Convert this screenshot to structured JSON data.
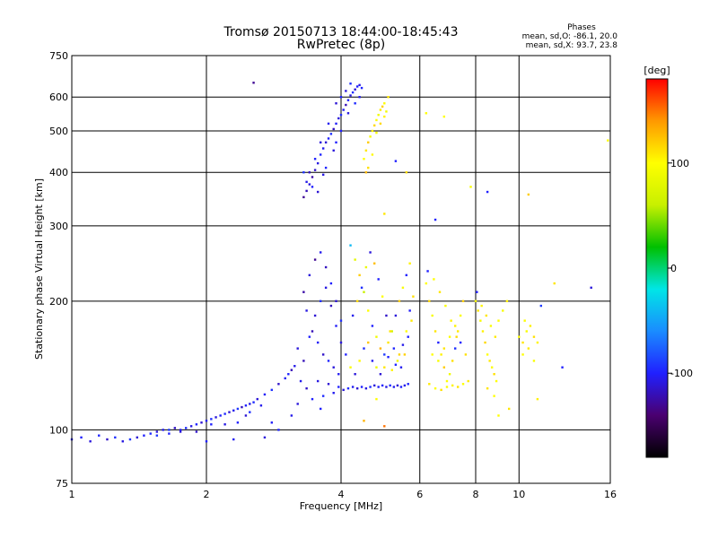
{
  "chart_data": {
    "type": "scatter",
    "title": "Tromsø 20150713 18:44:00-18:45:43",
    "subtitle": "RwPretec (8p)",
    "xlabel": "Frequency [MHz]",
    "ylabel": "Stationary phase Virtual Height [km]",
    "xscale": "log",
    "yscale": "log",
    "xlim": [
      1,
      16
    ],
    "ylim": [
      75,
      750
    ],
    "grid": true,
    "x_ticks": [
      1,
      2,
      4,
      6,
      8,
      10,
      16
    ],
    "x_tick_labels": [
      "1",
      "2",
      "4",
      "6",
      "8",
      "10",
      "16"
    ],
    "y_ticks": [
      75,
      100,
      200,
      300,
      400,
      500,
      600,
      750
    ],
    "y_tick_labels": [
      "75",
      "100",
      "200",
      "300",
      "400",
      "500",
      "600",
      "750"
    ],
    "annotation": {
      "heading": "Phases",
      "line1": "mean, sd,O: -86.1, 20.0",
      "line2": "mean, sd,X: 93.7, 23.8"
    },
    "colorbar": {
      "label": "[deg]",
      "range": [
        -180,
        180
      ],
      "ticks": [
        100,
        0,
        -100
      ],
      "tick_labels": [
        "100",
        "0",
        "-100"
      ],
      "colors": [
        "#000000",
        "#4a0070",
        "#2020ff",
        "#1a8cff",
        "#00e6e6",
        "#00c000",
        "#c8f000",
        "#ffff00",
        "#ff9900",
        "#ff0000"
      ]
    },
    "points": [
      [
        1.0,
        95,
        -105
      ],
      [
        1.05,
        96,
        -100
      ],
      [
        1.1,
        94,
        -110
      ],
      [
        1.15,
        97,
        -98
      ],
      [
        1.2,
        95,
        -115
      ],
      [
        1.25,
        96,
        -95
      ],
      [
        1.3,
        94,
        -108
      ],
      [
        1.35,
        95,
        -92
      ],
      [
        1.4,
        96,
        -112
      ],
      [
        1.45,
        97,
        -100
      ],
      [
        1.5,
        98,
        -96
      ],
      [
        1.55,
        99,
        -110
      ],
      [
        1.6,
        100,
        -104
      ],
      [
        1.65,
        100,
        -90
      ],
      [
        1.7,
        101,
        -116
      ],
      [
        1.75,
        100,
        -100
      ],
      [
        1.8,
        101,
        -95
      ],
      [
        1.85,
        102,
        -108
      ],
      [
        1.9,
        103,
        -99
      ],
      [
        1.95,
        104,
        -112
      ],
      [
        2.0,
        105,
        -103
      ],
      [
        2.05,
        106,
        -94
      ],
      [
        2.1,
        107,
        -110
      ],
      [
        2.15,
        108,
        -101
      ],
      [
        2.2,
        109,
        -97
      ],
      [
        2.25,
        110,
        -113
      ],
      [
        2.3,
        111,
        -105
      ],
      [
        2.35,
        112,
        -92
      ],
      [
        2.4,
        113,
        -118
      ],
      [
        2.45,
        114,
        -100
      ],
      [
        2.5,
        115,
        -107
      ],
      [
        2.55,
        116,
        -96
      ],
      [
        2.6,
        118,
        -111
      ],
      [
        2.7,
        121,
        -102
      ],
      [
        2.8,
        124,
        -94
      ],
      [
        2.9,
        128,
        -115
      ],
      [
        3.0,
        132,
        -103
      ],
      [
        3.05,
        135,
        -98
      ],
      [
        3.1,
        138,
        -120
      ],
      [
        3.15,
        141,
        -106
      ],
      [
        1.9,
        99,
        -115
      ],
      [
        2.2,
        103,
        -108
      ],
      [
        2.35,
        104,
        -100
      ],
      [
        2.5,
        110,
        -95
      ],
      [
        2.65,
        114,
        -105
      ],
      [
        1.55,
        97,
        -92
      ],
      [
        1.65,
        98,
        -100
      ],
      [
        1.75,
        99,
        -110
      ],
      [
        2.05,
        103,
        -100
      ],
      [
        2.45,
        108,
        -112
      ],
      [
        2.7,
        96,
        -110
      ],
      [
        2.3,
        95,
        -104
      ],
      [
        2.0,
        94,
        -100
      ],
      [
        2.9,
        100,
        -98
      ],
      [
        3.1,
        108,
        -106
      ],
      [
        2.55,
        648,
        -130
      ],
      [
        3.3,
        350,
        -130
      ],
      [
        3.35,
        362,
        -120
      ],
      [
        3.4,
        375,
        -110
      ],
      [
        3.45,
        390,
        -125
      ],
      [
        3.5,
        405,
        -115
      ],
      [
        3.55,
        420,
        -108
      ],
      [
        3.6,
        440,
        -98
      ],
      [
        3.65,
        455,
        -105
      ],
      [
        3.7,
        470,
        -112
      ],
      [
        3.75,
        480,
        -100
      ],
      [
        3.8,
        492,
        -95
      ],
      [
        3.85,
        505,
        -118
      ],
      [
        3.9,
        520,
        -102
      ],
      [
        3.95,
        535,
        -110
      ],
      [
        4.0,
        545,
        -96
      ],
      [
        4.05,
        560,
        -104
      ],
      [
        4.1,
        575,
        -120
      ],
      [
        4.15,
        590,
        -100
      ],
      [
        4.2,
        605,
        -108
      ],
      [
        4.25,
        615,
        -95
      ],
      [
        4.3,
        625,
        -112
      ],
      [
        4.35,
        635,
        -100
      ],
      [
        4.4,
        640,
        -106
      ],
      [
        4.45,
        630,
        -98
      ],
      [
        3.9,
        580,
        -112
      ],
      [
        4.0,
        600,
        -100
      ],
      [
        4.1,
        620,
        -110
      ],
      [
        4.2,
        645,
        -95
      ],
      [
        3.75,
        520,
        -104
      ],
      [
        3.6,
        470,
        -110
      ],
      [
        3.5,
        430,
        -100
      ],
      [
        3.4,
        400,
        -118
      ],
      [
        3.35,
        380,
        -106
      ],
      [
        3.55,
        360,
        -112
      ],
      [
        3.7,
        410,
        -98
      ],
      [
        3.85,
        450,
        -110
      ],
      [
        4.0,
        500,
        -100
      ],
      [
        4.15,
        550,
        -108
      ],
      [
        4.3,
        580,
        -96
      ],
      [
        4.4,
        600,
        -104
      ],
      [
        3.3,
        400,
        -92
      ],
      [
        3.45,
        370,
        -100
      ],
      [
        3.65,
        395,
        -108
      ],
      [
        3.9,
        470,
        -100
      ],
      [
        4.5,
        430,
        100
      ],
      [
        4.55,
        450,
        110
      ],
      [
        4.6,
        470,
        120
      ],
      [
        4.65,
        485,
        95
      ],
      [
        4.7,
        500,
        105
      ],
      [
        4.75,
        515,
        115
      ],
      [
        4.8,
        530,
        100
      ],
      [
        4.85,
        545,
        90
      ],
      [
        4.9,
        560,
        108
      ],
      [
        4.95,
        570,
        118
      ],
      [
        5.0,
        580,
        98
      ],
      [
        4.6,
        410,
        112
      ],
      [
        4.7,
        440,
        102
      ],
      [
        4.8,
        495,
        95
      ],
      [
        4.9,
        520,
        115
      ],
      [
        5.0,
        540,
        105
      ],
      [
        5.05,
        555,
        90
      ],
      [
        4.55,
        400,
        128
      ],
      [
        5.1,
        600,
        110
      ],
      [
        3.3,
        210,
        -125
      ],
      [
        3.4,
        230,
        -110
      ],
      [
        3.5,
        250,
        -130
      ],
      [
        3.6,
        260,
        -105
      ],
      [
        3.7,
        240,
        -118
      ],
      [
        3.8,
        220,
        -100
      ],
      [
        3.9,
        200,
        -112
      ],
      [
        4.0,
        180,
        -95
      ],
      [
        3.35,
        190,
        -108
      ],
      [
        3.45,
        170,
        -120
      ],
      [
        3.55,
        160,
        -102
      ],
      [
        3.65,
        150,
        -115
      ],
      [
        3.75,
        145,
        -98
      ],
      [
        3.85,
        140,
        -110
      ],
      [
        3.95,
        135,
        -104
      ],
      [
        3.2,
        155,
        -110
      ],
      [
        3.3,
        145,
        -120
      ],
      [
        3.4,
        165,
        -100
      ],
      [
        3.5,
        185,
        -112
      ],
      [
        3.6,
        200,
        -95
      ],
      [
        3.7,
        215,
        -108
      ],
      [
        3.8,
        195,
        -118
      ],
      [
        3.9,
        175,
        -102
      ],
      [
        4.0,
        160,
        -110
      ],
      [
        3.25,
        130,
        -105
      ],
      [
        3.35,
        125,
        -115
      ],
      [
        3.45,
        118,
        -100
      ],
      [
        3.55,
        130,
        -108
      ],
      [
        3.65,
        120,
        -96
      ],
      [
        3.75,
        128,
        -112
      ],
      [
        3.85,
        122,
        -104
      ],
      [
        3.95,
        126,
        -100
      ],
      [
        4.05,
        124,
        -110
      ],
      [
        4.15,
        125,
        -96
      ],
      [
        4.25,
        126,
        -104
      ],
      [
        4.35,
        125,
        -112
      ],
      [
        4.45,
        126,
        -100
      ],
      [
        4.55,
        125,
        -108
      ],
      [
        4.65,
        126,
        -95
      ],
      [
        4.75,
        127,
        -110
      ],
      [
        4.85,
        126,
        -102
      ],
      [
        4.95,
        127,
        -100
      ],
      [
        5.05,
        126,
        -108
      ],
      [
        5.15,
        127,
        -96
      ],
      [
        5.25,
        126,
        -104
      ],
      [
        5.35,
        127,
        -112
      ],
      [
        5.45,
        126,
        -100
      ],
      [
        5.55,
        127,
        -106
      ],
      [
        5.65,
        128,
        -98
      ],
      [
        4.2,
        270,
        -40
      ],
      [
        4.3,
        250,
        80
      ],
      [
        4.4,
        230,
        120
      ],
      [
        4.5,
        210,
        60
      ],
      [
        4.6,
        190,
        100
      ],
      [
        4.7,
        175,
        -100
      ],
      [
        4.8,
        165,
        90
      ],
      [
        4.9,
        155,
        130
      ],
      [
        5.0,
        150,
        -90
      ],
      [
        5.1,
        160,
        110
      ],
      [
        5.2,
        170,
        70
      ],
      [
        5.3,
        185,
        -110
      ],
      [
        5.4,
        200,
        120
      ],
      [
        5.5,
        215,
        95
      ],
      [
        5.6,
        230,
        -100
      ],
      [
        5.7,
        245,
        105
      ],
      [
        4.25,
        185,
        -105
      ],
      [
        4.35,
        200,
        115
      ],
      [
        4.45,
        215,
        -95
      ],
      [
        4.55,
        240,
        85
      ],
      [
        4.65,
        260,
        -110
      ],
      [
        4.75,
        245,
        125
      ],
      [
        4.85,
        225,
        -100
      ],
      [
        4.95,
        205,
        100
      ],
      [
        5.05,
        185,
        -115
      ],
      [
        5.15,
        170,
        110
      ],
      [
        5.25,
        155,
        -98
      ],
      [
        5.35,
        145,
        90
      ],
      [
        5.45,
        140,
        -104
      ],
      [
        5.55,
        150,
        118
      ],
      [
        5.65,
        165,
        -100
      ],
      [
        5.75,
        180,
        108
      ],
      [
        4.1,
        150,
        -100
      ],
      [
        4.2,
        140,
        96
      ],
      [
        4.3,
        135,
        -110
      ],
      [
        4.4,
        145,
        102
      ],
      [
        4.5,
        155,
        -96
      ],
      [
        4.6,
        160,
        122
      ],
      [
        4.7,
        145,
        -104
      ],
      [
        4.8,
        140,
        88
      ],
      [
        4.9,
        135,
        -112
      ],
      [
        5.0,
        140,
        110
      ],
      [
        5.1,
        148,
        -100
      ],
      [
        5.2,
        138,
        104
      ],
      [
        5.3,
        142,
        -98
      ],
      [
        5.4,
        150,
        116
      ],
      [
        5.5,
        158,
        -106
      ],
      [
        5.6,
        170,
        100
      ],
      [
        5.7,
        190,
        -102
      ],
      [
        5.8,
        205,
        112
      ],
      [
        6.2,
        220,
        100
      ],
      [
        6.3,
        200,
        115
      ],
      [
        6.4,
        185,
        95
      ],
      [
        6.5,
        170,
        110
      ],
      [
        6.6,
        160,
        -100
      ],
      [
        6.7,
        150,
        105
      ],
      [
        6.8,
        140,
        120
      ],
      [
        6.9,
        130,
        100
      ],
      [
        7.0,
        135,
        90
      ],
      [
        7.1,
        145,
        112
      ],
      [
        7.2,
        155,
        -95
      ],
      [
        7.3,
        170,
        108
      ],
      [
        7.4,
        185,
        96
      ],
      [
        7.5,
        200,
        118
      ],
      [
        6.25,
        235,
        -100
      ],
      [
        6.45,
        225,
        100
      ],
      [
        6.65,
        210,
        110
      ],
      [
        6.85,
        195,
        98
      ],
      [
        7.05,
        180,
        104
      ],
      [
        7.25,
        165,
        115
      ],
      [
        6.3,
        128,
        108
      ],
      [
        6.5,
        125,
        100
      ],
      [
        6.7,
        124,
        112
      ],
      [
        6.9,
        126,
        96
      ],
      [
        7.1,
        127,
        104
      ],
      [
        7.3,
        126,
        110
      ],
      [
        7.5,
        128,
        100
      ],
      [
        7.7,
        130,
        108
      ],
      [
        6.4,
        150,
        100
      ],
      [
        6.6,
        145,
        95
      ],
      [
        6.8,
        155,
        110
      ],
      [
        7.0,
        165,
        98
      ],
      [
        7.2,
        175,
        105
      ],
      [
        7.4,
        160,
        -100
      ],
      [
        7.6,
        150,
        112
      ],
      [
        8.0,
        200,
        100
      ],
      [
        8.1,
        190,
        110
      ],
      [
        8.2,
        180,
        95
      ],
      [
        8.3,
        170,
        105
      ],
      [
        8.4,
        160,
        115
      ],
      [
        8.5,
        150,
        100
      ],
      [
        8.6,
        145,
        108
      ],
      [
        8.7,
        140,
        98
      ],
      [
        8.8,
        135,
        112
      ],
      [
        8.9,
        130,
        100
      ],
      [
        8.05,
        210,
        -100
      ],
      [
        8.25,
        195,
        104
      ],
      [
        8.45,
        185,
        110
      ],
      [
        8.65,
        175,
        96
      ],
      [
        8.85,
        165,
        108
      ],
      [
        9.0,
        180,
        100
      ],
      [
        9.2,
        190,
        95
      ],
      [
        9.4,
        200,
        105
      ],
      [
        8.5,
        125,
        110
      ],
      [
        8.8,
        120,
        100
      ],
      [
        10.0,
        165,
        100
      ],
      [
        10.2,
        160,
        110
      ],
      [
        10.4,
        170,
        95
      ],
      [
        10.6,
        175,
        105
      ],
      [
        10.8,
        165,
        112
      ],
      [
        10.2,
        150,
        100
      ],
      [
        10.5,
        155,
        108
      ],
      [
        10.8,
        145,
        96
      ],
      [
        11.0,
        160,
        104
      ],
      [
        10.3,
        180,
        98
      ],
      [
        5.3,
        425,
        -100
      ],
      [
        5.6,
        400,
        115
      ],
      [
        6.2,
        550,
        100
      ],
      [
        7.8,
        370,
        95
      ],
      [
        6.8,
        540,
        100
      ],
      [
        8.5,
        360,
        -100
      ],
      [
        10.5,
        355,
        120
      ],
      [
        5.0,
        320,
        110
      ],
      [
        6.5,
        310,
        -100
      ],
      [
        14.5,
        215,
        -110
      ],
      [
        15.8,
        475,
        100
      ],
      [
        12.0,
        220,
        110
      ],
      [
        11.2,
        195,
        -90
      ],
      [
        12.5,
        140,
        -100
      ],
      [
        3.6,
        112,
        -100
      ],
      [
        4.5,
        105,
        130
      ],
      [
        5.0,
        102,
        150
      ],
      [
        4.8,
        118,
        100
      ],
      [
        9.5,
        112,
        110
      ],
      [
        11.0,
        118,
        105
      ],
      [
        9.0,
        108,
        100
      ],
      [
        3.2,
        115,
        -110
      ],
      [
        2.8,
        104,
        -102
      ]
    ]
  }
}
